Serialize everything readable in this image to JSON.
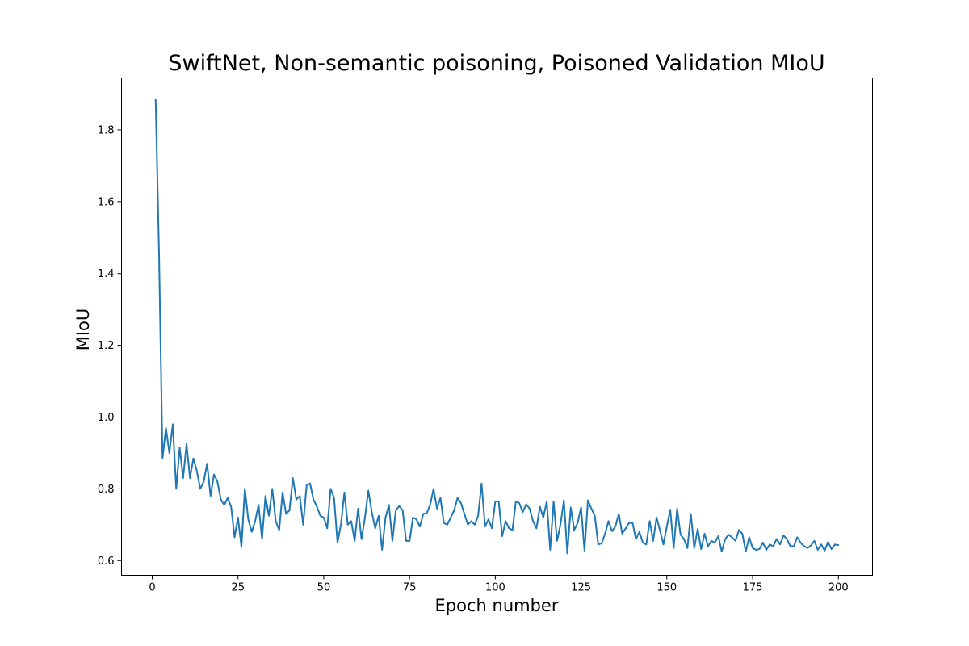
{
  "chart_data": {
    "type": "line",
    "title": "SwiftNet, Non-semantic poisoning, Poisoned Validation MIoU",
    "xlabel": "Epoch number",
    "ylabel": "MIoU",
    "xlim": [
      -8.95,
      209.95
    ],
    "ylim": [
      0.559,
      1.945
    ],
    "xticks": [
      0,
      25,
      50,
      75,
      100,
      125,
      150,
      175,
      200
    ],
    "yticks": [
      0.6,
      0.8,
      1.0,
      1.2,
      1.4,
      1.6,
      1.8
    ],
    "ytick_labels": [
      "0.6",
      "0.8",
      "1.0",
      "1.2",
      "1.4",
      "1.6",
      "1.8"
    ],
    "grid": false,
    "series": [
      {
        "color": "#1f77b4",
        "x_start": 1,
        "x_step": 1,
        "values": [
          1.885,
          1.45,
          0.885,
          0.97,
          0.9,
          0.98,
          0.8,
          0.915,
          0.83,
          0.925,
          0.83,
          0.885,
          0.85,
          0.8,
          0.82,
          0.87,
          0.78,
          0.84,
          0.82,
          0.77,
          0.755,
          0.775,
          0.75,
          0.665,
          0.72,
          0.638,
          0.8,
          0.715,
          0.68,
          0.71,
          0.755,
          0.66,
          0.78,
          0.725,
          0.8,
          0.71,
          0.685,
          0.79,
          0.73,
          0.74,
          0.83,
          0.77,
          0.78,
          0.7,
          0.81,
          0.815,
          0.77,
          0.75,
          0.725,
          0.72,
          0.69,
          0.8,
          0.775,
          0.65,
          0.7,
          0.79,
          0.7,
          0.71,
          0.655,
          0.745,
          0.66,
          0.72,
          0.795,
          0.735,
          0.69,
          0.725,
          0.63,
          0.72,
          0.755,
          0.655,
          0.74,
          0.752,
          0.74,
          0.655,
          0.655,
          0.72,
          0.715,
          0.695,
          0.73,
          0.732,
          0.755,
          0.8,
          0.745,
          0.775,
          0.705,
          0.7,
          0.72,
          0.74,
          0.775,
          0.76,
          0.73,
          0.7,
          0.71,
          0.7,
          0.725,
          0.815,
          0.695,
          0.715,
          0.69,
          0.765,
          0.765,
          0.668,
          0.71,
          0.69,
          0.685,
          0.765,
          0.76,
          0.735,
          0.757,
          0.745,
          0.71,
          0.69,
          0.75,
          0.72,
          0.765,
          0.63,
          0.765,
          0.655,
          0.7,
          0.768,
          0.62,
          0.748,
          0.685,
          0.705,
          0.748,
          0.628,
          0.768,
          0.745,
          0.725,
          0.645,
          0.648,
          0.675,
          0.71,
          0.682,
          0.695,
          0.73,
          0.675,
          0.69,
          0.705,
          0.705,
          0.66,
          0.68,
          0.65,
          0.645,
          0.71,
          0.655,
          0.72,
          0.685,
          0.645,
          0.695,
          0.742,
          0.635,
          0.745,
          0.672,
          0.66,
          0.635,
          0.73,
          0.635,
          0.688,
          0.632,
          0.675,
          0.64,
          0.655,
          0.65,
          0.668,
          0.625,
          0.66,
          0.672,
          0.665,
          0.655,
          0.685,
          0.675,
          0.625,
          0.665,
          0.635,
          0.63,
          0.632,
          0.65,
          0.63,
          0.645,
          0.64,
          0.66,
          0.645,
          0.67,
          0.66,
          0.64,
          0.64,
          0.665,
          0.65,
          0.64,
          0.635,
          0.642,
          0.655,
          0.63,
          0.645,
          0.628,
          0.652,
          0.632,
          0.645,
          0.643
        ]
      }
    ]
  }
}
